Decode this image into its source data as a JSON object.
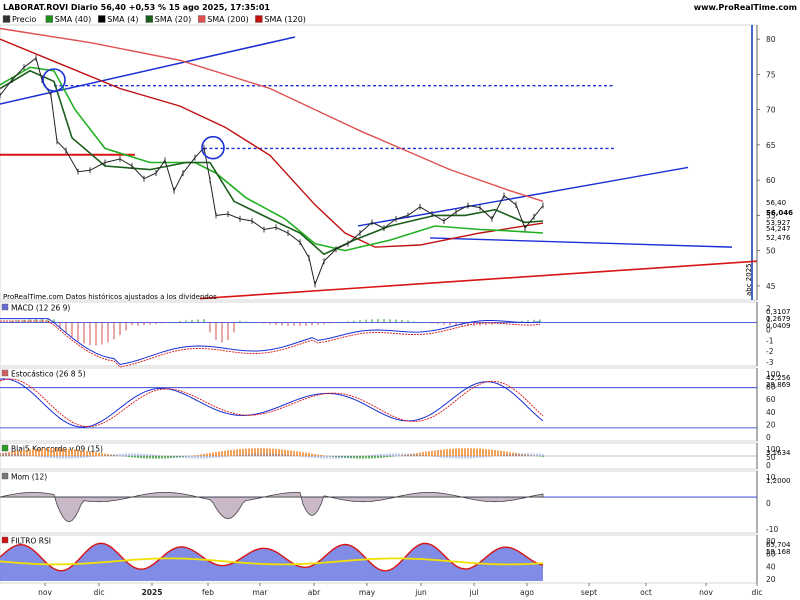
{
  "header": {
    "title": "LABORAT.ROVI Diario 56,40 +0,53 % 15 ago 2025, 17:35:01",
    "site": "www.ProRealTime.com",
    "legend": [
      {
        "label": "Precio",
        "color": "#333333"
      },
      {
        "label": "SMA (40)",
        "color": "#1f8f1f"
      },
      {
        "label": "SMA (4)",
        "color": "#000000"
      },
      {
        "label": "SMA (20)",
        "color": "#1a5e1a"
      },
      {
        "label": "SMA (200)",
        "color": "#e05050"
      },
      {
        "label": "SMA (120)",
        "color": "#c01010"
      }
    ]
  },
  "footnote": "ProRealTime.com Datos históricos ajustados a los dividendos",
  "watermark": "abc 2025",
  "chart_data": {
    "type": "line",
    "x_labels": [
      "nov",
      "dic",
      "2025",
      "feb",
      "mar",
      "abr",
      "may",
      "jun",
      "jul",
      "ago",
      "sept",
      "oct",
      "nov",
      "dic"
    ],
    "price_axis": {
      "ticks": [
        45,
        50,
        55,
        60,
        65,
        70,
        75,
        80
      ],
      "ylim": [
        43,
        82
      ]
    },
    "price_labels": {
      "current": "56,40",
      "last": "56,046",
      "ma1": "54,247",
      "ma2": "53,927",
      "ma3": "52,476"
    },
    "price_series": [
      {
        "x": 0,
        "y": 72.0
      },
      {
        "x": 4,
        "y": 74.2
      },
      {
        "x": 8,
        "y": 76.0
      },
      {
        "x": 12,
        "y": 77.3
      },
      {
        "x": 14,
        "y": 74.2
      },
      {
        "x": 17,
        "y": 72.0
      },
      {
        "x": 19,
        "y": 65.5
      },
      {
        "x": 22,
        "y": 64.2
      },
      {
        "x": 26,
        "y": 61.2
      },
      {
        "x": 30,
        "y": 61.4
      },
      {
        "x": 35,
        "y": 62.5
      },
      {
        "x": 40,
        "y": 63.0
      },
      {
        "x": 44,
        "y": 62.0
      },
      {
        "x": 48,
        "y": 60.2
      },
      {
        "x": 52,
        "y": 61.0
      },
      {
        "x": 55,
        "y": 62.8
      },
      {
        "x": 58,
        "y": 58.5
      },
      {
        "x": 61,
        "y": 61.0
      },
      {
        "x": 65,
        "y": 63.2
      },
      {
        "x": 68,
        "y": 64.6
      },
      {
        "x": 70,
        "y": 60.0
      },
      {
        "x": 72,
        "y": 55.0
      },
      {
        "x": 76,
        "y": 55.2
      },
      {
        "x": 80,
        "y": 54.5
      },
      {
        "x": 84,
        "y": 54.2
      },
      {
        "x": 88,
        "y": 53.0
      },
      {
        "x": 92,
        "y": 53.3
      },
      {
        "x": 96,
        "y": 52.5
      },
      {
        "x": 100,
        "y": 51.2
      },
      {
        "x": 103,
        "y": 49.0
      },
      {
        "x": 105,
        "y": 45.2
      },
      {
        "x": 108,
        "y": 48.5
      },
      {
        "x": 112,
        "y": 50.2
      },
      {
        "x": 116,
        "y": 51.0
      },
      {
        "x": 120,
        "y": 52.5
      },
      {
        "x": 124,
        "y": 54.0
      },
      {
        "x": 128,
        "y": 53.2
      },
      {
        "x": 132,
        "y": 54.5
      },
      {
        "x": 136,
        "y": 55.0
      },
      {
        "x": 140,
        "y": 56.2
      },
      {
        "x": 144,
        "y": 55.2
      },
      {
        "x": 148,
        "y": 54.2
      },
      {
        "x": 152,
        "y": 55.5
      },
      {
        "x": 156,
        "y": 56.4
      },
      {
        "x": 160,
        "y": 56.1
      },
      {
        "x": 164,
        "y": 54.5
      },
      {
        "x": 168,
        "y": 57.8
      },
      {
        "x": 172,
        "y": 56.5
      },
      {
        "x": 175,
        "y": 53.2
      },
      {
        "x": 178,
        "y": 54.8
      },
      {
        "x": 181,
        "y": 56.4
      }
    ],
    "sma_series": [
      {
        "name": "SMA (200)",
        "color": "#e05050",
        "points": [
          [
            0,
            81.5
          ],
          [
            30,
            79.5
          ],
          [
            60,
            77.0
          ],
          [
            90,
            73.0
          ],
          [
            120,
            67.0
          ],
          [
            150,
            61.5
          ],
          [
            170,
            58.5
          ],
          [
            181,
            57.0
          ]
        ]
      },
      {
        "name": "SMA (120)",
        "color": "#c01010",
        "points": [
          [
            0,
            80.0
          ],
          [
            20,
            76.5
          ],
          [
            40,
            73.0
          ],
          [
            60,
            70.5
          ],
          [
            75,
            67.5
          ],
          [
            90,
            63.5
          ],
          [
            105,
            56.5
          ],
          [
            115,
            52.5
          ],
          [
            125,
            50.5
          ],
          [
            140,
            50.8
          ],
          [
            160,
            52.5
          ],
          [
            181,
            53.9
          ]
        ]
      },
      {
        "name": "SMA (40)",
        "color": "#22b022",
        "points": [
          [
            0,
            73.5
          ],
          [
            10,
            76.0
          ],
          [
            18,
            75.5
          ],
          [
            25,
            70.0
          ],
          [
            35,
            64.5
          ],
          [
            50,
            62.5
          ],
          [
            65,
            62.5
          ],
          [
            72,
            61.0
          ],
          [
            82,
            57.5
          ],
          [
            95,
            54.5
          ],
          [
            105,
            51.0
          ],
          [
            115,
            50.0
          ],
          [
            130,
            51.5
          ],
          [
            145,
            53.5
          ],
          [
            160,
            53.0
          ],
          [
            170,
            52.8
          ],
          [
            181,
            52.5
          ]
        ]
      },
      {
        "name": "SMA (20)",
        "color": "#1a5e1a",
        "points": [
          [
            0,
            73.0
          ],
          [
            10,
            75.5
          ],
          [
            18,
            74.0
          ],
          [
            24,
            66.0
          ],
          [
            35,
            62.0
          ],
          [
            50,
            61.5
          ],
          [
            62,
            62.5
          ],
          [
            70,
            62.5
          ],
          [
            78,
            57.0
          ],
          [
            90,
            54.5
          ],
          [
            100,
            52.5
          ],
          [
            108,
            49.5
          ],
          [
            118,
            51.5
          ],
          [
            130,
            53.5
          ],
          [
            145,
            55.0
          ],
          [
            155,
            55.0
          ],
          [
            165,
            55.8
          ],
          [
            175,
            54.0
          ],
          [
            181,
            54.2
          ]
        ]
      }
    ],
    "annotations": {
      "hlines_dashed": [
        {
          "y": 73.4,
          "from": 18,
          "to": 205
        },
        {
          "y": 64.5,
          "from": 68,
          "to": 205
        }
      ],
      "hline_red": {
        "y": 63.6,
        "from": 0,
        "to": 45
      },
      "circles": [
        {
          "x": 18,
          "y": 74.2
        },
        {
          "x": 71,
          "y": 64.6
        }
      ]
    },
    "indicators": [
      {
        "name": "MACD",
        "title": "MACD (12 26 9)",
        "ticks": [
          "2",
          "1",
          "0",
          "-1",
          "-2",
          "-3"
        ],
        "labels": [
          "0,3107",
          "0,2679",
          "0,0409"
        ]
      },
      {
        "name": "Estocastico",
        "title": "Estocástico (26 8 5)",
        "ticks": [
          "100",
          "80",
          "60",
          "40",
          "20",
          "0"
        ],
        "labels": [
          "42,256",
          "29,869"
        ]
      },
      {
        "name": "Koncorde",
        "title": "Blai5 Koncorde v.09 (15)",
        "ticks": [
          "100",
          "50",
          "0"
        ],
        "labels": [
          "3,1634"
        ]
      },
      {
        "name": "Momentum",
        "title": "Mom (12)",
        "ticks": [
          "10",
          "0",
          "-10"
        ],
        "labels": [
          "1,2000"
        ]
      },
      {
        "name": "FiltroRSI",
        "title": "FILTRO RSI",
        "ticks": [
          "80",
          "60",
          "40",
          "20"
        ],
        "labels": [
          "65,704",
          "59,168"
        ]
      }
    ]
  }
}
